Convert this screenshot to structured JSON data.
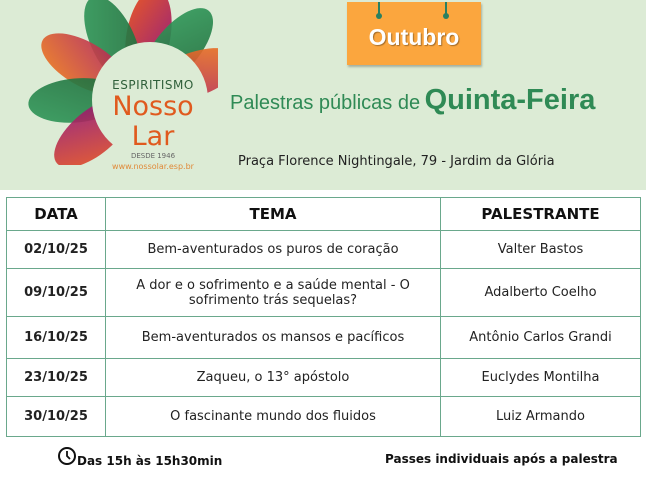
{
  "logo": {
    "line1": "ESPIRITISMO",
    "line2": "Nosso Lar",
    "line3": "DESDE 1946",
    "line4": "www.nossolar.esp.br"
  },
  "sign": {
    "label": "Outubro",
    "color": "#fba63e"
  },
  "title": {
    "prefix": "Palestras públicas de",
    "day": "Quinta-Feira"
  },
  "address": "Praça Florence Nightingale, 79 - Jardim da Glória",
  "table": {
    "headers": [
      "DATA",
      "TEMA",
      "PALESTRANTE"
    ],
    "rows": [
      {
        "data": "02/10/25",
        "tema": "Bem-aventurados os puros de coração",
        "palestrante": "Valter Bastos"
      },
      {
        "data": "09/10/25",
        "tema": "A dor e o sofrimento e a saúde mental - O sofrimento trás sequelas?",
        "palestrante": "Adalberto Coelho"
      },
      {
        "data": "16/10/25",
        "tema": "Bem-aventurados os mansos e pacíficos",
        "palestrante": "Antônio Carlos Grandi"
      },
      {
        "data": "23/10/25",
        "tema": "Zaqueu, o 13° apóstolo",
        "palestrante": "Euclydes Montilha"
      },
      {
        "data": "30/10/25",
        "tema": "O fascinante mundo dos fluidos",
        "palestrante": "Luiz Armando"
      }
    ]
  },
  "footer": {
    "time_icon": "clock-icon",
    "time": "Das 15h às 15h30min",
    "note": "Passes individuais após a palestra"
  }
}
